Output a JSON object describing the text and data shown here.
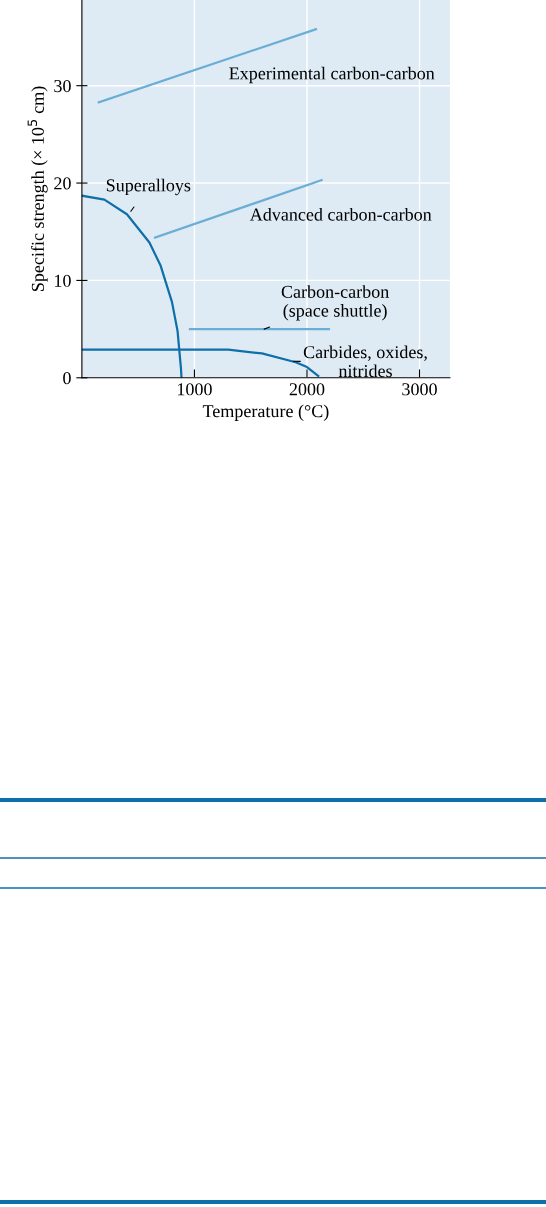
{
  "chart_data": {
    "type": "line",
    "xlabel": "Temperature (°C)",
    "ylabel": "Specific strength (× 10$^{5}$ cm)",
    "xlim": [
      0,
      3270
    ],
    "ylim": [
      0,
      38.8
    ],
    "xticks": [
      1000,
      2000,
      3000
    ],
    "yticks": [
      0,
      10,
      20,
      30
    ],
    "grid": true,
    "series": [
      {
        "name": "Experimental carbon-carbon",
        "color": "#6aaed6",
        "x": [
          150,
          2080
        ],
        "values": [
          28.3,
          35.8
        ]
      },
      {
        "name": "Superalloys",
        "color": "#0f6fa8",
        "x": [
          0,
          200,
          400,
          600,
          700,
          800,
          850,
          880,
          885
        ],
        "values": [
          18.7,
          18.3,
          16.8,
          13.9,
          11.5,
          7.8,
          4.8,
          1.0,
          0
        ]
      },
      {
        "name": "Advanced carbon-carbon",
        "color": "#6aaed6",
        "x": [
          650,
          2130
        ],
        "values": [
          14.4,
          20.3
        ]
      },
      {
        "name": "Carbon-carbon\n(space shuttle)",
        "color": "#6aaed6",
        "x": [
          960,
          2195
        ],
        "values": [
          5.0,
          5.0
        ]
      },
      {
        "name": "Carbides, oxides,\nnitrides",
        "color": "#0f6fa8",
        "x": [
          0,
          1300,
          1600,
          1900,
          2000,
          2100
        ],
        "values": [
          2.9,
          2.9,
          2.5,
          1.6,
          1.1,
          0.2
        ]
      }
    ]
  }
}
